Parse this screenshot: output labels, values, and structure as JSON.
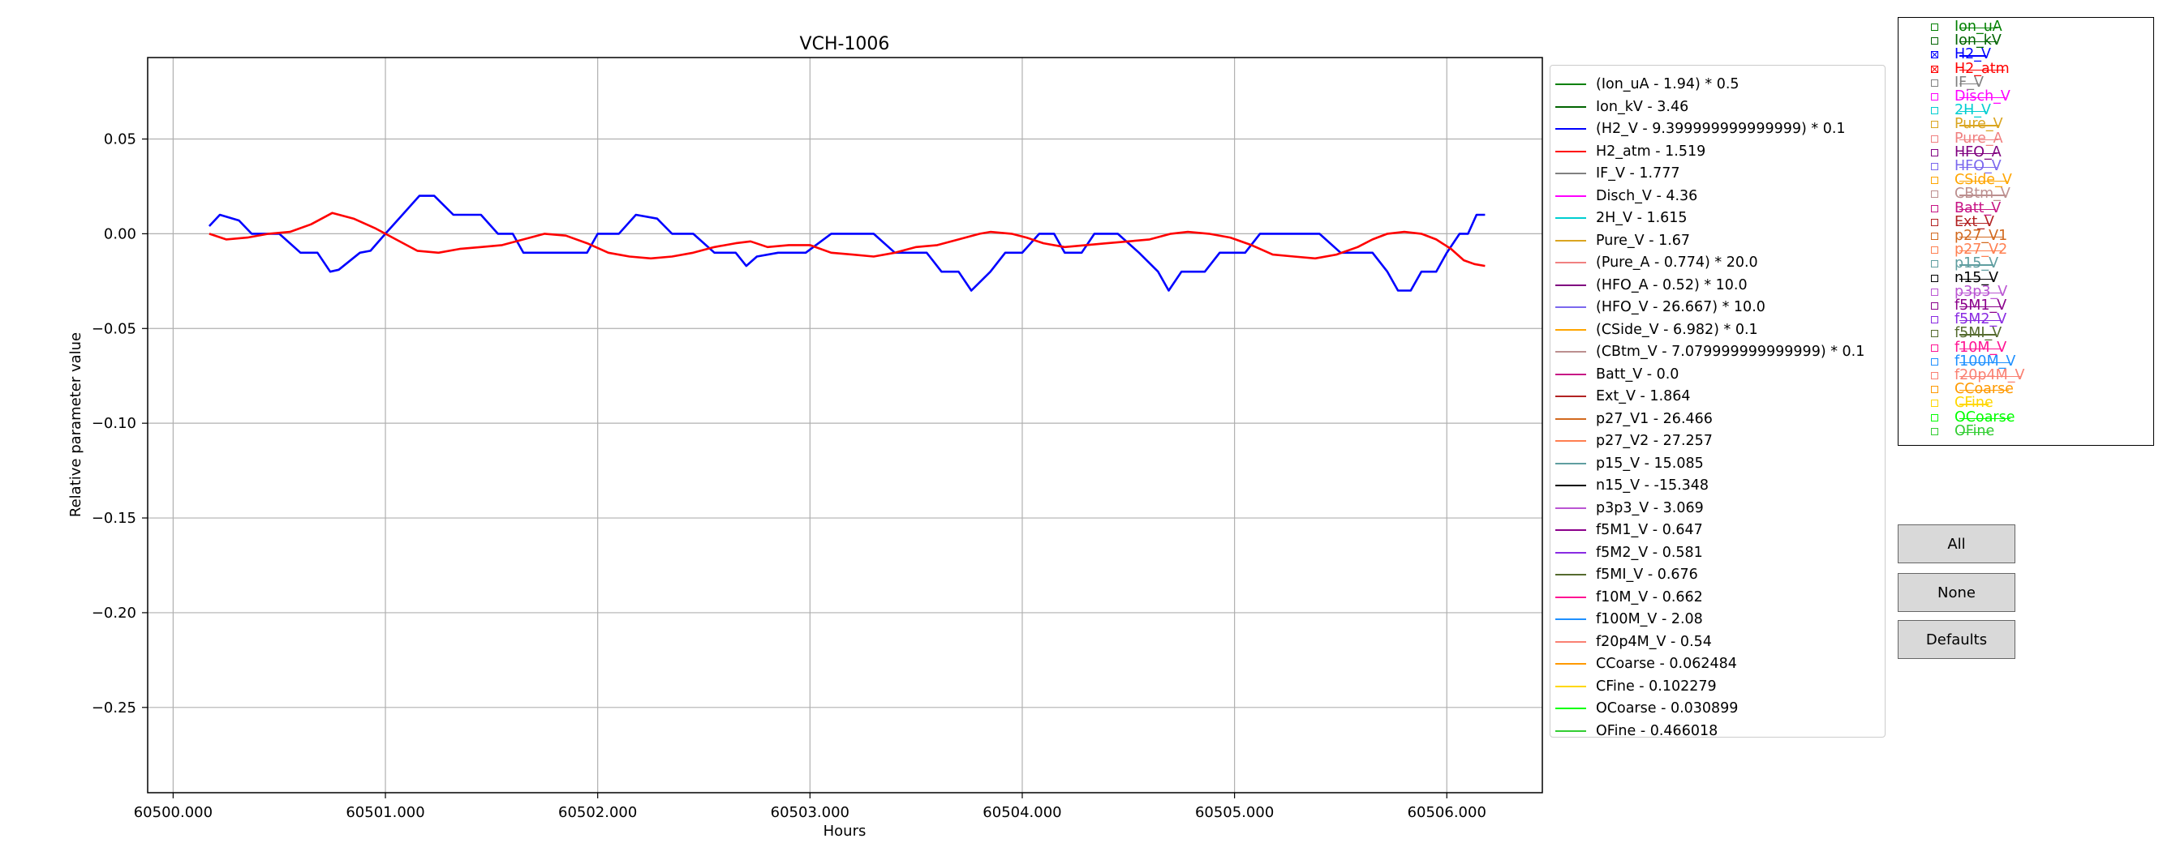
{
  "chart_data": {
    "type": "line",
    "title": "VCH-1006",
    "xlabel": "Hours",
    "ylabel": "Relative parameter value",
    "xlim": [
      60499.88,
      60506.45
    ],
    "ylim": [
      -0.295,
      0.093
    ],
    "xticks": [
      60500,
      60501,
      60502,
      60503,
      60504,
      60505,
      60506
    ],
    "xtick_labels": [
      "60500.000",
      "60501.000",
      "60502.000",
      "60503.000",
      "60504.000",
      "60505.000",
      "60506.000"
    ],
    "yticks": [
      0.05,
      0.0,
      -0.05,
      -0.1,
      -0.15,
      -0.2,
      -0.25
    ],
    "ytick_labels": [
      "0.05",
      "0.00",
      "−0.05",
      "−0.10",
      "−0.15",
      "−0.20",
      "−0.25"
    ],
    "grid": true,
    "legend_position": "outside-right",
    "series": [
      {
        "name": "(H2_V - 9.399999999999999) * 0.1",
        "color": "#0000ff",
        "points": [
          [
            60500.17,
            0.004
          ],
          [
            60500.22,
            0.01
          ],
          [
            60500.31,
            0.007
          ],
          [
            60500.37,
            0.0
          ],
          [
            60500.5,
            0.0
          ],
          [
            60500.6,
            -0.01
          ],
          [
            60500.68,
            -0.01
          ],
          [
            60500.74,
            -0.02
          ],
          [
            60500.78,
            -0.019
          ],
          [
            60500.88,
            -0.01
          ],
          [
            60500.93,
            -0.009
          ],
          [
            60501.0,
            0.0
          ],
          [
            60501.08,
            0.01
          ],
          [
            60501.16,
            0.02
          ],
          [
            60501.23,
            0.02
          ],
          [
            60501.32,
            0.01
          ],
          [
            60501.45,
            0.01
          ],
          [
            60501.53,
            0.0
          ],
          [
            60501.6,
            0.0
          ],
          [
            60501.65,
            -0.01
          ],
          [
            60501.8,
            -0.01
          ],
          [
            60501.95,
            -0.01
          ],
          [
            60502.0,
            0.0
          ],
          [
            60502.1,
            0.0
          ],
          [
            60502.18,
            0.01
          ],
          [
            60502.28,
            0.008
          ],
          [
            60502.35,
            0.0
          ],
          [
            60502.45,
            0.0
          ],
          [
            60502.55,
            -0.01
          ],
          [
            60502.65,
            -0.01
          ],
          [
            60502.7,
            -0.017
          ],
          [
            60502.75,
            -0.012
          ],
          [
            60502.85,
            -0.01
          ],
          [
            60502.98,
            -0.01
          ],
          [
            60503.1,
            0.0
          ],
          [
            60503.3,
            0.0
          ],
          [
            60503.4,
            -0.01
          ],
          [
            60503.55,
            -0.01
          ],
          [
            60503.62,
            -0.02
          ],
          [
            60503.7,
            -0.02
          ],
          [
            60503.76,
            -0.03
          ],
          [
            60503.85,
            -0.02
          ],
          [
            60503.92,
            -0.01
          ],
          [
            60504.0,
            -0.01
          ],
          [
            60504.08,
            0.0
          ],
          [
            60504.15,
            0.0
          ],
          [
            60504.2,
            -0.01
          ],
          [
            60504.28,
            -0.01
          ],
          [
            60504.34,
            0.0
          ],
          [
            60504.45,
            0.0
          ],
          [
            60504.55,
            -0.01
          ],
          [
            60504.64,
            -0.02
          ],
          [
            60504.69,
            -0.03
          ],
          [
            60504.75,
            -0.02
          ],
          [
            60504.86,
            -0.02
          ],
          [
            60504.93,
            -0.01
          ],
          [
            60505.05,
            -0.01
          ],
          [
            60505.12,
            0.0
          ],
          [
            60505.4,
            0.0
          ],
          [
            60505.5,
            -0.01
          ],
          [
            60505.65,
            -0.01
          ],
          [
            60505.72,
            -0.02
          ],
          [
            60505.77,
            -0.03
          ],
          [
            60505.83,
            -0.03
          ],
          [
            60505.88,
            -0.02
          ],
          [
            60505.95,
            -0.02
          ],
          [
            60506.0,
            -0.01
          ],
          [
            60506.06,
            0.0
          ],
          [
            60506.1,
            0.0
          ],
          [
            60506.14,
            0.01
          ],
          [
            60506.18,
            0.01
          ]
        ]
      },
      {
        "name": "H2_atm - 1.519",
        "color": "#ff0000",
        "points": [
          [
            60500.17,
            0.0
          ],
          [
            60500.25,
            -0.003
          ],
          [
            60500.35,
            -0.002
          ],
          [
            60500.45,
            0.0
          ],
          [
            60500.55,
            0.001
          ],
          [
            60500.65,
            0.005
          ],
          [
            60500.75,
            0.011
          ],
          [
            60500.85,
            0.008
          ],
          [
            60500.95,
            0.003
          ],
          [
            60501.05,
            -0.003
          ],
          [
            60501.15,
            -0.009
          ],
          [
            60501.25,
            -0.01
          ],
          [
            60501.35,
            -0.008
          ],
          [
            60501.45,
            -0.007
          ],
          [
            60501.55,
            -0.006
          ],
          [
            60501.65,
            -0.003
          ],
          [
            60501.75,
            0.0
          ],
          [
            60501.85,
            -0.001
          ],
          [
            60501.95,
            -0.005
          ],
          [
            60502.05,
            -0.01
          ],
          [
            60502.15,
            -0.012
          ],
          [
            60502.25,
            -0.013
          ],
          [
            60502.35,
            -0.012
          ],
          [
            60502.45,
            -0.01
          ],
          [
            60502.55,
            -0.007
          ],
          [
            60502.65,
            -0.005
          ],
          [
            60502.72,
            -0.004
          ],
          [
            60502.8,
            -0.007
          ],
          [
            60502.9,
            -0.006
          ],
          [
            60503.0,
            -0.006
          ],
          [
            60503.1,
            -0.01
          ],
          [
            60503.2,
            -0.011
          ],
          [
            60503.3,
            -0.012
          ],
          [
            60503.4,
            -0.01
          ],
          [
            60503.5,
            -0.007
          ],
          [
            60503.6,
            -0.006
          ],
          [
            60503.7,
            -0.003
          ],
          [
            60503.8,
            0.0
          ],
          [
            60503.85,
            0.001
          ],
          [
            60503.95,
            0.0
          ],
          [
            60504.02,
            -0.002
          ],
          [
            60504.1,
            -0.005
          ],
          [
            60504.2,
            -0.007
          ],
          [
            60504.3,
            -0.006
          ],
          [
            60504.4,
            -0.005
          ],
          [
            60504.5,
            -0.004
          ],
          [
            60504.6,
            -0.003
          ],
          [
            60504.7,
            0.0
          ],
          [
            60504.78,
            0.001
          ],
          [
            60504.88,
            0.0
          ],
          [
            60504.98,
            -0.002
          ],
          [
            60505.08,
            -0.006
          ],
          [
            60505.18,
            -0.011
          ],
          [
            60505.28,
            -0.012
          ],
          [
            60505.38,
            -0.013
          ],
          [
            60505.48,
            -0.011
          ],
          [
            60505.58,
            -0.007
          ],
          [
            60505.65,
            -0.003
          ],
          [
            60505.72,
            0.0
          ],
          [
            60505.8,
            0.001
          ],
          [
            60505.88,
            0.0
          ],
          [
            60505.95,
            -0.003
          ],
          [
            60506.02,
            -0.008
          ],
          [
            60506.08,
            -0.014
          ],
          [
            60506.13,
            -0.016
          ],
          [
            60506.18,
            -0.017
          ]
        ]
      }
    ]
  },
  "legend": {
    "items": [
      {
        "label": "(Ion_uA - 1.94) * 0.5",
        "color": "#008000"
      },
      {
        "label": "Ion_kV - 3.46",
        "color": "#006400"
      },
      {
        "label": "(H2_V - 9.399999999999999) * 0.1",
        "color": "#0000ff"
      },
      {
        "label": "H2_atm - 1.519",
        "color": "#ff0000"
      },
      {
        "label": "IF_V - 1.777",
        "color": "#808080"
      },
      {
        "label": "Disch_V - 4.36",
        "color": "#ff00ff"
      },
      {
        "label": "2H_V - 1.615",
        "color": "#00ced1"
      },
      {
        "label": "Pure_V - 1.67",
        "color": "#daa520"
      },
      {
        "label": "(Pure_A - 0.774) * 20.0",
        "color": "#f08080"
      },
      {
        "label": "(HFO_A - 0.52) * 10.0",
        "color": "#800080"
      },
      {
        "label": "(HFO_V - 26.667) * 10.0",
        "color": "#7b68ee"
      },
      {
        "label": "(CSide_V - 6.982) * 0.1",
        "color": "#ffa500"
      },
      {
        "label": "(CBtm_V - 7.079999999999999) * 0.1",
        "color": "#bc8f8f"
      },
      {
        "label": "Batt_V - 0.0",
        "color": "#c71585"
      },
      {
        "label": "Ext_V - 1.864",
        "color": "#b22222"
      },
      {
        "label": "p27_V1 - 26.466",
        "color": "#d2691e"
      },
      {
        "label": "p27_V2 - 27.257",
        "color": "#ff7f50"
      },
      {
        "label": "p15_V - 15.085",
        "color": "#5f9ea0"
      },
      {
        "label": "n15_V - -15.348",
        "color": "#000000"
      },
      {
        "label": "p3p3_V - 3.069",
        "color": "#ba55d3"
      },
      {
        "label": "f5M1_V - 0.647",
        "color": "#8b008b"
      },
      {
        "label": "f5M2_V - 0.581",
        "color": "#8a2be2"
      },
      {
        "label": "f5MI_V - 0.676",
        "color": "#556b2f"
      },
      {
        "label": "f10M_V - 0.662",
        "color": "#ff1493"
      },
      {
        "label": "f100M_V - 2.08",
        "color": "#1e90ff"
      },
      {
        "label": "f20p4M_V - 0.54",
        "color": "#fa8072"
      },
      {
        "label": "CCoarse - 0.062484",
        "color": "#ff9900"
      },
      {
        "label": "CFine - 0.102279",
        "color": "#ffd700"
      },
      {
        "label": "OCoarse - 0.030899",
        "color": "#00ff00"
      },
      {
        "label": "OFine - 0.466018",
        "color": "#32cd32"
      }
    ]
  },
  "checkpanel": {
    "items": [
      {
        "label": "Ion_uA",
        "color": "#008000",
        "checked": false
      },
      {
        "label": "Ion_kV",
        "color": "#006400",
        "checked": false
      },
      {
        "label": "H2_V",
        "color": "#0000ff",
        "checked": true
      },
      {
        "label": "H2_atm",
        "color": "#ff0000",
        "checked": true
      },
      {
        "label": "IF_V",
        "color": "#808080",
        "checked": false
      },
      {
        "label": "Disch_V",
        "color": "#ff00ff",
        "checked": false
      },
      {
        "label": "2H_V",
        "color": "#00ced1",
        "checked": false
      },
      {
        "label": "Pure_V",
        "color": "#daa520",
        "checked": false
      },
      {
        "label": "Pure_A",
        "color": "#f08080",
        "checked": false
      },
      {
        "label": "HFO_A",
        "color": "#800080",
        "checked": false
      },
      {
        "label": "HFO_V",
        "color": "#7b68ee",
        "checked": false
      },
      {
        "label": "CSide_V",
        "color": "#ffa500",
        "checked": false
      },
      {
        "label": "CBtm_V",
        "color": "#bc8f8f",
        "checked": false
      },
      {
        "label": "Batt_V",
        "color": "#c71585",
        "checked": false
      },
      {
        "label": "Ext_V",
        "color": "#b22222",
        "checked": false
      },
      {
        "label": "p27_V1",
        "color": "#d2691e",
        "checked": false
      },
      {
        "label": "p27_V2",
        "color": "#ff7f50",
        "checked": false
      },
      {
        "label": "p15_V",
        "color": "#5f9ea0",
        "checked": false
      },
      {
        "label": "n15_V",
        "color": "#000000",
        "checked": false
      },
      {
        "label": "p3p3_V",
        "color": "#ba55d3",
        "checked": false
      },
      {
        "label": "f5M1_V",
        "color": "#8b008b",
        "checked": false
      },
      {
        "label": "f5M2_V",
        "color": "#8a2be2",
        "checked": false
      },
      {
        "label": "f5MI_V",
        "color": "#556b2f",
        "checked": false
      },
      {
        "label": "f10M_V",
        "color": "#ff1493",
        "checked": false
      },
      {
        "label": "f100M_V",
        "color": "#1e90ff",
        "checked": false
      },
      {
        "label": "f20p4M_V",
        "color": "#fa8072",
        "checked": false
      },
      {
        "label": "CCoarse",
        "color": "#ff9900",
        "checked": false
      },
      {
        "label": "CFine",
        "color": "#ffd700",
        "checked": false
      },
      {
        "label": "OCoarse",
        "color": "#00ff00",
        "checked": false
      },
      {
        "label": "OFine",
        "color": "#32cd32",
        "checked": false
      }
    ]
  },
  "buttons": {
    "all": "All",
    "none": "None",
    "defaults": "Defaults"
  }
}
